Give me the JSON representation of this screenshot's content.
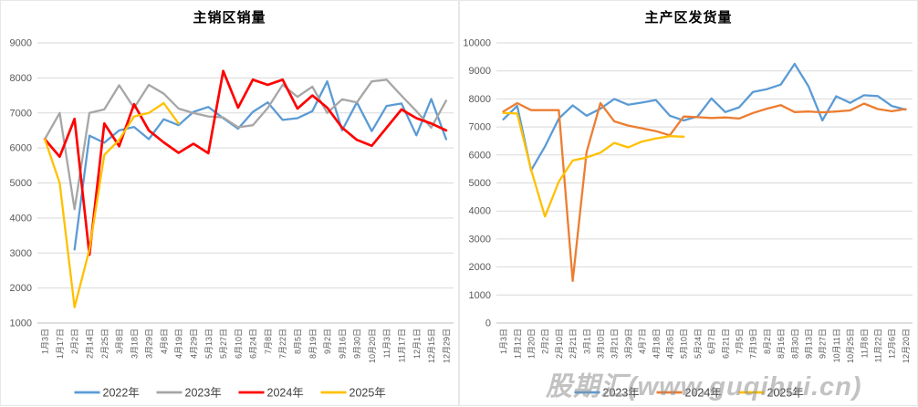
{
  "watermark": {
    "text": "股期汇(www.guqihui.cn)"
  },
  "chart_data": [
    {
      "type": "line",
      "title": "主销区销量",
      "xlabel": "",
      "ylabel": "",
      "ylim": [
        1000,
        9000
      ],
      "y_step": 1000,
      "grid": true,
      "legend_position": "bottom",
      "y_tick_labels": [
        "9000",
        "8000",
        "7000",
        "6000",
        "5000",
        "4000",
        "3000",
        "2000",
        "1000"
      ],
      "categories": [
        "1月3日",
        "1月17日",
        "2月2日",
        "2月14日",
        "2月25日",
        "3月8日",
        "3月18日",
        "3月29日",
        "4月8日",
        "4月19日",
        "4月29日",
        "5月13日",
        "5月27日",
        "6月10日",
        "6月24日",
        "7月8日",
        "7月22日",
        "8月5日",
        "8月19日",
        "9月2日",
        "9月16日",
        "9月30日",
        "10月20日",
        "11月3日",
        "11月17日",
        "12月1日",
        "12月15日",
        "12月29日"
      ],
      "series": [
        {
          "name": "2022年",
          "color": "#5B9BD5",
          "values": [
            null,
            null,
            3100,
            6350,
            6150,
            6500,
            6600,
            6250,
            6820,
            6650,
            7030,
            7170,
            6850,
            6550,
            7030,
            7300,
            6800,
            6850,
            7050,
            7900,
            6500,
            7300,
            6480,
            7200,
            7270,
            6360,
            7400,
            6250
          ]
        },
        {
          "name": "2023年",
          "color": "#A6A6A6",
          "values": [
            6250,
            7000,
            4250,
            7000,
            7100,
            7790,
            7140,
            7800,
            7550,
            7125,
            6995,
            6900,
            6870,
            6590,
            6650,
            7140,
            7800,
            7460,
            7750,
            7000,
            7390,
            7300,
            7900,
            7950,
            7490,
            7050,
            6580,
            7350
          ]
        },
        {
          "name": "2024年",
          "color": "#FF0000",
          "values": [
            6250,
            5750,
            6830,
            2950,
            6700,
            6050,
            7250,
            6500,
            6160,
            5860,
            6120,
            5850,
            8200,
            7150,
            7950,
            7800,
            7950,
            7125,
            7500,
            7150,
            6580,
            6230,
            6060,
            6580,
            7100,
            6850,
            6700,
            6500
          ]
        },
        {
          "name": "2025年",
          "color": "#FFC000",
          "values": [
            6250,
            5000,
            1450,
            3100,
            5800,
            6230,
            6900,
            7000,
            7280,
            6700,
            null,
            null,
            null,
            null,
            null,
            null,
            null,
            null,
            null,
            null,
            null,
            null,
            null,
            null,
            null,
            null,
            null,
            null
          ]
        }
      ]
    },
    {
      "type": "line",
      "title": "主产区发货量",
      "xlabel": "",
      "ylabel": "",
      "ylim": [
        0,
        10000
      ],
      "y_step": 1000,
      "grid": true,
      "legend_position": "bottom",
      "y_tick_labels": [
        "10000",
        "9000",
        "8000",
        "7000",
        "6000",
        "5000",
        "4000",
        "3000",
        "2000",
        "1000",
        "0"
      ],
      "categories": [
        "1月3日",
        "1月12日",
        "1月20日",
        "2月2日",
        "2月10日",
        "2月21日",
        "3月1日",
        "3月10日",
        "3月21日",
        "3月29日",
        "4月7日",
        "4月18日",
        "4月26日",
        "5月10日",
        "5月24日",
        "6月7日",
        "6月21日",
        "7月5日",
        "7月19日",
        "8月2日",
        "8月16日",
        "8月30日",
        "9月13日",
        "9月27日",
        "10月11日",
        "10月25日",
        "11月8日",
        "11月22日",
        "12月6日",
        "12月20日"
      ],
      "series": [
        {
          "name": "2023年",
          "color": "#5B9BD5",
          "values": [
            7270,
            7750,
            5450,
            6300,
            7300,
            7770,
            7400,
            7650,
            8000,
            7790,
            7870,
            7960,
            7400,
            7230,
            7370,
            8020,
            7530,
            7700,
            8250,
            8350,
            8510,
            9250,
            8450,
            7230,
            8095,
            7860,
            8130,
            8100,
            7750,
            7620
          ]
        },
        {
          "name": "2024年",
          "color": "#ED7D31",
          "values": [
            7550,
            7850,
            7600,
            7600,
            7600,
            1500,
            6100,
            7850,
            7200,
            7050,
            6950,
            6850,
            6700,
            7370,
            7350,
            7320,
            7340,
            7300,
            7500,
            7650,
            7780,
            7530,
            7550,
            7520,
            7550,
            7590,
            7835,
            7640,
            7560,
            7640
          ]
        },
        {
          "name": "2025年",
          "color": "#FFC000",
          "values": [
            7500,
            7480,
            5480,
            3800,
            5050,
            5800,
            5910,
            6080,
            6430,
            6270,
            6480,
            6590,
            6670,
            6650,
            null,
            null,
            null,
            null,
            null,
            null,
            null,
            null,
            null,
            null,
            null,
            null,
            null,
            null,
            null,
            null
          ]
        }
      ]
    }
  ]
}
